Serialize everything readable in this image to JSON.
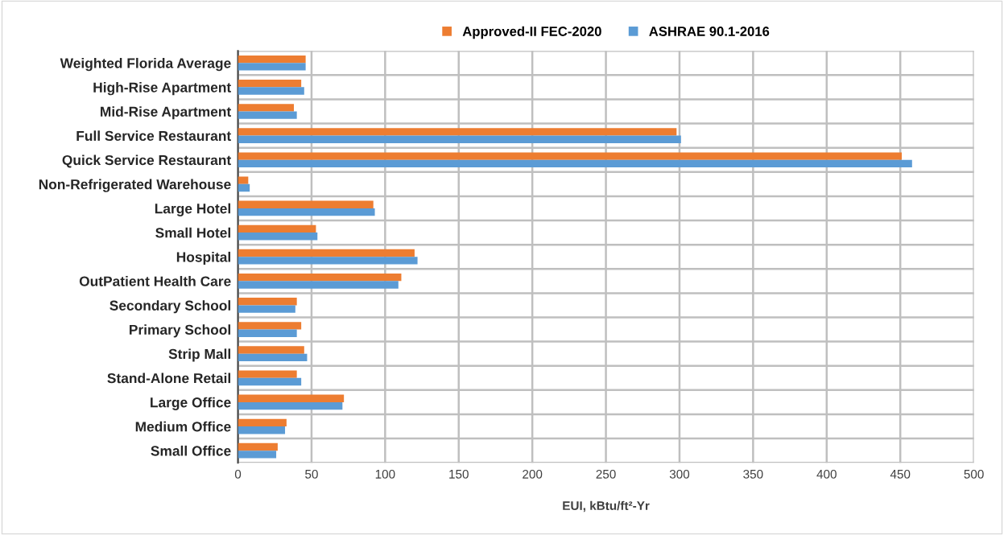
{
  "chart_data": {
    "type": "bar",
    "orientation": "horizontal",
    "xlabel": "EUI, kBtu/ft²-Yr",
    "categories": [
      "Weighted Florida Average",
      "High-Rise Apartment",
      "Mid-Rise Apartment",
      "Full Service Restaurant",
      "Quick Service Restaurant",
      "Non-Refrigerated Warehouse",
      "Large Hotel",
      "Small Hotel",
      "Hospital",
      "OutPatient Health Care",
      "Secondary School",
      "Primary School",
      "Strip Mall",
      "Stand-Alone Retail",
      "Large Office",
      "Medium Office",
      "Small Office"
    ],
    "series": [
      {
        "name": "Approved-II FEC-2020",
        "color": "#ed7d31",
        "values": [
          46,
          43,
          38,
          298,
          451,
          7,
          92,
          53,
          120,
          111,
          40,
          43,
          45,
          40,
          72,
          33,
          27
        ]
      },
      {
        "name": "ASHRAE 90.1-2016",
        "color": "#5b9bd5",
        "values": [
          46,
          45,
          40,
          301,
          458,
          8,
          93,
          54,
          122,
          109,
          39,
          40,
          47,
          43,
          71,
          32,
          26
        ]
      }
    ],
    "xlim": [
      0,
      500
    ],
    "xticks": [
      0,
      50,
      100,
      150,
      200,
      250,
      300,
      350,
      400,
      450,
      500
    ],
    "grid": true,
    "legend": "top"
  }
}
